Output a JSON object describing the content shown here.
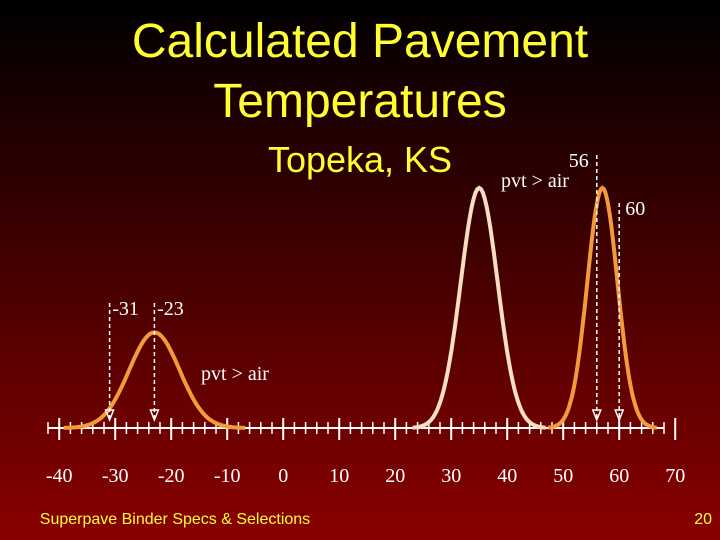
{
  "slide": {
    "title": "Calculated Pavement Temperatures",
    "subtitle": "Topeka, KS",
    "footer": "Superpave Binder Specs & Selections",
    "page_number": "20"
  },
  "chart_data": {
    "type": "density",
    "xlim": [
      -42,
      68
    ],
    "xticks": [
      -40,
      -30,
      -20,
      -10,
      0,
      10,
      20,
      30,
      40,
      50,
      60,
      70
    ],
    "minor_tick_step": 2,
    "ylim": [
      0,
      1
    ],
    "series": [
      {
        "color": "#f39a3c",
        "mean": -23,
        "sd": 4.5,
        "peak": 0.39
      },
      {
        "color": "#f5dfc0",
        "mean": 35,
        "sd": 3.3,
        "peak": 0.98
      },
      {
        "color": "#f39a3c",
        "mean": 57,
        "sd": 2.7,
        "peak": 0.98
      }
    ],
    "markers": [
      -31,
      -23,
      56,
      60
    ],
    "annotations": [
      "pvt > air",
      "pvt > air"
    ]
  }
}
